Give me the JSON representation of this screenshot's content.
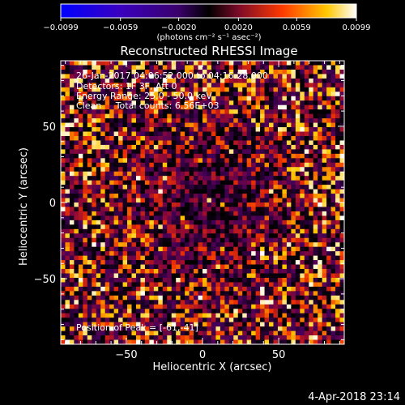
{
  "chart_data": {
    "type": "heatmap",
    "title": "Reconstructed RHESSI Image",
    "xlabel": "Heliocentric X (arcsec)",
    "ylabel": "Heliocentric Y (arcsec)",
    "xlim": [
      -93,
      93
    ],
    "ylim": [
      -93,
      93
    ],
    "xticks": [
      -50,
      0,
      50
    ],
    "yticks": [
      50,
      0,
      -50
    ],
    "xtick_labels": [
      "−50",
      "0",
      "50"
    ],
    "ytick_labels": [
      "50",
      "0",
      "−50"
    ],
    "colorbar": {
      "min": -0.0099,
      "max": 0.0099,
      "ticks": [
        -0.0099,
        -0.0059,
        -0.002,
        0.002,
        0.0059,
        0.0099
      ],
      "tick_labels": [
        "−0.0099",
        "−0.0059",
        "−0.0020",
        "0.0020",
        "0.0059",
        "0.0099"
      ],
      "units_label": "(photons cm⁻² s⁻¹ asec⁻²)"
    },
    "annotations": {
      "time_range": "26-Jan-2017 04:06:52.000 to 04:16:28.000",
      "detectors": "Detectors: 1F 3F, Att 0",
      "energy_range": "Energy Range: 25.0 - 50.0 keV",
      "method_counts": "Clean     Total counts: 6.56E+03",
      "peak_position": "Position of Peak = [-61,-41]"
    },
    "grid": false,
    "pixel_count": 64,
    "note_values": "Pixel intensities appear randomized noise-like; approximated by seeded pseudo-random field with darker center."
  },
  "footer": {
    "plot_date": "4-Apr-2018 23:14"
  }
}
